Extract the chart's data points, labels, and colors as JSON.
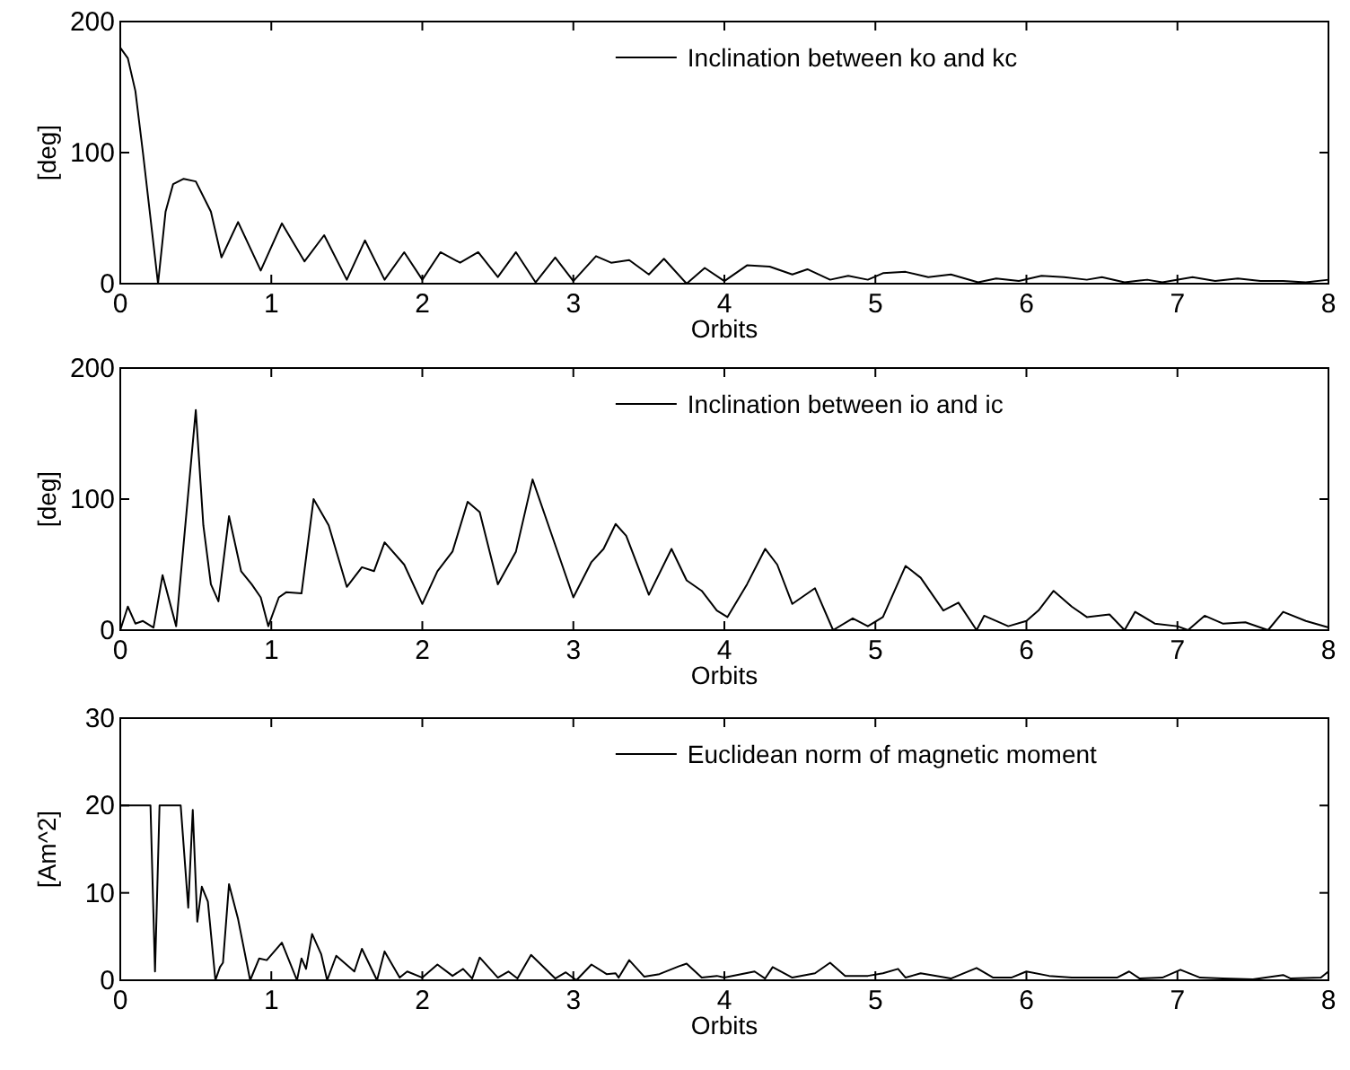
{
  "chart_data": [
    {
      "type": "line",
      "xlabel": "Orbits",
      "ylabel": "[deg]",
      "xlim": [
        0,
        8
      ],
      "xticks": [
        0,
        1,
        2,
        3,
        4,
        5,
        6,
        7,
        8
      ],
      "ylim": [
        0,
        200
      ],
      "yticks": [
        0,
        100,
        200
      ],
      "legend": "top right",
      "x": [
        0,
        0.05,
        0.1,
        0.15,
        0.2,
        0.25,
        0.3,
        0.35,
        0.42,
        0.5,
        0.6,
        0.67,
        0.78,
        0.93,
        1.07,
        1.22,
        1.35,
        1.5,
        1.62,
        1.75,
        1.88,
        2.0,
        2.12,
        2.25,
        2.37,
        2.5,
        2.62,
        2.75,
        2.88,
        3.0,
        3.15,
        3.25,
        3.37,
        3.5,
        3.6,
        3.75,
        3.87,
        4.0,
        4.15,
        4.3,
        4.45,
        4.55,
        4.7,
        4.82,
        4.95,
        5.05,
        5.2,
        5.35,
        5.5,
        5.68,
        5.8,
        5.95,
        6.1,
        6.25,
        6.4,
        6.5,
        6.65,
        6.8,
        6.9,
        7.1,
        7.25,
        7.4,
        7.55,
        7.7,
        7.85,
        8.0
      ],
      "series": [
        {
          "name": "Inclination between ko and kc",
          "color": "#000000",
          "values": [
            180,
            172,
            147,
            100,
            50,
            0,
            55,
            76,
            80,
            78,
            55,
            20,
            47,
            10,
            46,
            17,
            37,
            3,
            33,
            3,
            24,
            3,
            24,
            16,
            24,
            5,
            24,
            1,
            20,
            2,
            21,
            16,
            18,
            7,
            19,
            0,
            12,
            2,
            14,
            13,
            7,
            11,
            3,
            6,
            3,
            8,
            9,
            5,
            7,
            1,
            4,
            2,
            6,
            5,
            3,
            5,
            1,
            3,
            1,
            5,
            2,
            4,
            2,
            2,
            1,
            3
          ]
        }
      ]
    },
    {
      "type": "line",
      "xlabel": "Orbits",
      "ylabel": "[deg]",
      "xlim": [
        0,
        8
      ],
      "xticks": [
        0,
        1,
        2,
        3,
        4,
        5,
        6,
        7,
        8
      ],
      "ylim": [
        0,
        200
      ],
      "yticks": [
        0,
        100,
        200
      ],
      "legend": "top right",
      "x": [
        0,
        0.05,
        0.1,
        0.15,
        0.22,
        0.28,
        0.37,
        0.5,
        0.55,
        0.6,
        0.65,
        0.72,
        0.8,
        0.87,
        0.93,
        0.98,
        1.05,
        1.1,
        1.2,
        1.28,
        1.38,
        1.5,
        1.6,
        1.68,
        1.75,
        1.88,
        2.0,
        2.1,
        2.2,
        2.3,
        2.38,
        2.5,
        2.62,
        2.73,
        2.85,
        3.0,
        3.12,
        3.2,
        3.28,
        3.35,
        3.5,
        3.65,
        3.75,
        3.85,
        3.95,
        4.02,
        4.15,
        4.27,
        4.35,
        4.45,
        4.6,
        4.72,
        4.85,
        4.95,
        5.05,
        5.2,
        5.3,
        5.45,
        5.55,
        5.67,
        5.72,
        5.88,
        6.0,
        6.08,
        6.18,
        6.3,
        6.4,
        6.55,
        6.65,
        6.72,
        6.85,
        7.0,
        7.07,
        7.18,
        7.3,
        7.45,
        7.6,
        7.7,
        7.85,
        8.0
      ],
      "series": [
        {
          "name": "Inclination between io and ic",
          "color": "#000000",
          "values": [
            0,
            18,
            5,
            7,
            2,
            42,
            3,
            168,
            80,
            35,
            22,
            87,
            45,
            35,
            25,
            3,
            25,
            29,
            28,
            100,
            80,
            33,
            48,
            45,
            67,
            50,
            20,
            45,
            60,
            98,
            90,
            35,
            60,
            115,
            75,
            25,
            52,
            62,
            81,
            72,
            27,
            62,
            38,
            30,
            15,
            10,
            35,
            62,
            50,
            20,
            32,
            0,
            9,
            3,
            10,
            49,
            40,
            15,
            21,
            0,
            11,
            3,
            7,
            15,
            30,
            18,
            10,
            12,
            0,
            14,
            5,
            3,
            0,
            11,
            5,
            6,
            0,
            14,
            7,
            2
          ]
        }
      ]
    },
    {
      "type": "line",
      "xlabel": "Orbits",
      "ylabel": "[Am^2]",
      "xlim": [
        0,
        8
      ],
      "xticks": [
        0,
        1,
        2,
        3,
        4,
        5,
        6,
        7,
        8
      ],
      "ylim": [
        0,
        30
      ],
      "yticks": [
        0,
        10,
        20,
        30
      ],
      "legend": "top right",
      "x": [
        0,
        0.2,
        0.23,
        0.26,
        0.4,
        0.45,
        0.48,
        0.51,
        0.54,
        0.58,
        0.63,
        0.66,
        0.68,
        0.72,
        0.78,
        0.86,
        0.92,
        0.97,
        1.07,
        1.17,
        1.2,
        1.23,
        1.27,
        1.33,
        1.37,
        1.43,
        1.55,
        1.6,
        1.7,
        1.75,
        1.85,
        1.9,
        2.0,
        2.1,
        2.2,
        2.27,
        2.33,
        2.38,
        2.5,
        2.57,
        2.63,
        2.72,
        2.88,
        2.95,
        3.02,
        3.12,
        3.22,
        3.28,
        3.3,
        3.37,
        3.47,
        3.57,
        3.7,
        3.75,
        3.85,
        3.95,
        4.0,
        4.2,
        4.27,
        4.32,
        4.45,
        4.6,
        4.7,
        4.8,
        4.95,
        5.05,
        5.15,
        5.2,
        5.3,
        5.5,
        5.67,
        5.78,
        5.9,
        6.0,
        6.15,
        6.3,
        6.6,
        6.68,
        6.75,
        6.9,
        7.02,
        7.15,
        7.3,
        7.5,
        7.7,
        7.75,
        7.95,
        8.0
      ],
      "series": [
        {
          "name": "Euclidean norm of magnetic moment",
          "color": "#000000",
          "values": [
            20,
            20,
            1,
            20,
            20,
            8.3,
            19.5,
            6.7,
            10.7,
            9,
            0,
            1.5,
            2,
            11,
            7,
            0,
            2.5,
            2.3,
            4.3,
            0,
            2.5,
            1.3,
            5.3,
            3,
            0,
            2.8,
            1,
            3.6,
            0,
            3.3,
            0.3,
            1,
            0.3,
            1.8,
            0.5,
            1.3,
            0.2,
            2.6,
            0.3,
            1,
            0.2,
            2.9,
            0.2,
            0.9,
            0,
            1.8,
            0.7,
            0.8,
            0.3,
            2.3,
            0.4,
            0.7,
            1.6,
            1.9,
            0.3,
            0.5,
            0.3,
            1,
            0.2,
            1.5,
            0.3,
            0.8,
            2,
            0.5,
            0.5,
            0.8,
            1.3,
            0.3,
            0.8,
            0.2,
            1.4,
            0.3,
            0.3,
            1,
            0.5,
            0.3,
            0.3,
            1,
            0.2,
            0.3,
            1.2,
            0.3,
            0.2,
            0.1,
            0.6,
            0.2,
            0.3,
            1
          ]
        }
      ]
    }
  ]
}
